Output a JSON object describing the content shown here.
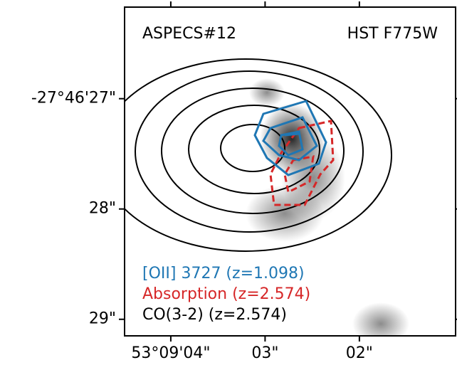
{
  "chart_data": {
    "type": "image",
    "annotations": [
      "ASPECS#12",
      "HST F775W"
    ],
    "series": [
      {
        "name": "[OII] 3727 (z=1.098)",
        "color": "#1f77b4"
      },
      {
        "name": "Absorption (z=2.574)",
        "color": "#d62728"
      },
      {
        "name": "CO(3-2) (z=2.574)",
        "color": "#000000"
      }
    ],
    "xlim": [
      4.49,
      0.98
    ],
    "xticks": [
      {
        "value": 4,
        "label": "53°09'04\""
      },
      {
        "value": 3,
        "label": "03\""
      },
      {
        "value": 2,
        "label": "02\""
      }
    ],
    "ylim": [
      26.17,
      29.15
    ],
    "yticks": [
      {
        "value": 27,
        "label": "-27°46'27\""
      },
      {
        "value": 28,
        "label": "28\""
      },
      {
        "value": 29,
        "label": "29\""
      }
    ]
  }
}
